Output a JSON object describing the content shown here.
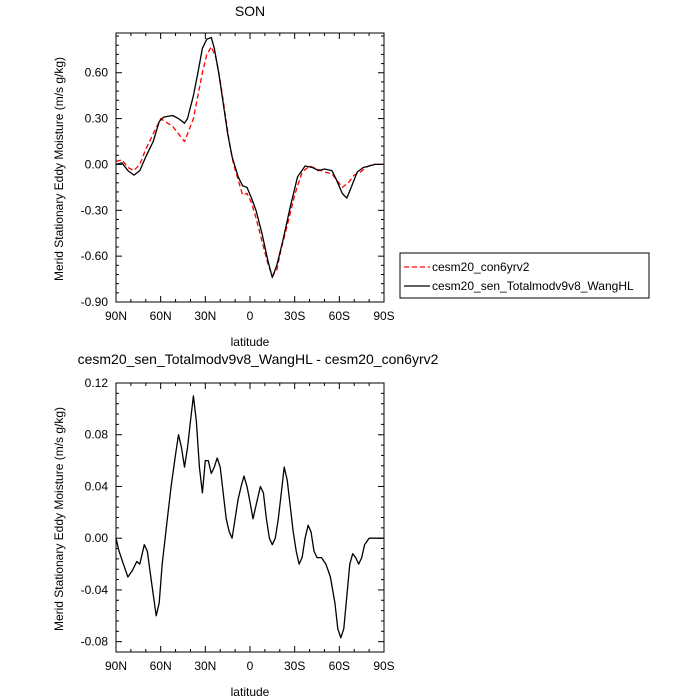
{
  "chart_data": [
    {
      "type": "line",
      "title": "SON",
      "xlabel": "latitude",
      "ylabel": "Merid Stationary Eddy Moisture (m/s g/kg)",
      "xlim": [
        90,
        -90
      ],
      "ylim": [
        -0.9,
        0.86
      ],
      "x_tick_values": [
        90,
        60,
        30,
        0,
        -30,
        -60,
        -90
      ],
      "x_tick_labels": [
        "90N",
        "60N",
        "30N",
        "0",
        "30S",
        "60S",
        "90S"
      ],
      "y_tick_values": [
        -0.9,
        -0.6,
        -0.3,
        0.0,
        0.3,
        0.6
      ],
      "y_tick_labels": [
        "-0.90",
        "-0.60",
        "-0.30",
        "0.00",
        "0.30",
        "0.60"
      ],
      "legend_position": "right",
      "series": [
        {
          "name": "cesm20_con6yrv2",
          "color": "#ff0000",
          "dash": "dashed",
          "points": [
            [
              90,
              0.02
            ],
            [
              86,
              0.03
            ],
            [
              82,
              -0.02
            ],
            [
              78,
              -0.04
            ],
            [
              74,
              0.0
            ],
            [
              70,
              0.1
            ],
            [
              65,
              0.2
            ],
            [
              60,
              0.3
            ],
            [
              57,
              0.28
            ],
            [
              52,
              0.25
            ],
            [
              48,
              0.2
            ],
            [
              44,
              0.15
            ],
            [
              42,
              0.2
            ],
            [
              38,
              0.3
            ],
            [
              35,
              0.45
            ],
            [
              32,
              0.6
            ],
            [
              29,
              0.72
            ],
            [
              26,
              0.77
            ],
            [
              23,
              0.7
            ],
            [
              20,
              0.55
            ],
            [
              17,
              0.35
            ],
            [
              14,
              0.15
            ],
            [
              11,
              0.0
            ],
            [
              8,
              -0.1
            ],
            [
              5,
              -0.2
            ],
            [
              2,
              -0.19
            ],
            [
              -1,
              -0.25
            ],
            [
              -4,
              -0.35
            ],
            [
              -8,
              -0.5
            ],
            [
              -12,
              -0.65
            ],
            [
              -15,
              -0.73
            ],
            [
              -18,
              -0.69
            ],
            [
              -21,
              -0.55
            ],
            [
              -25,
              -0.4
            ],
            [
              -30,
              -0.2
            ],
            [
              -35,
              -0.05
            ],
            [
              -40,
              -0.01
            ],
            [
              -45,
              -0.03
            ],
            [
              -50,
              -0.05
            ],
            [
              -55,
              -0.06
            ],
            [
              -58,
              -0.1
            ],
            [
              -62,
              -0.15
            ],
            [
              -66,
              -0.12
            ],
            [
              -70,
              -0.07
            ],
            [
              -74,
              -0.05
            ],
            [
              -78,
              -0.02
            ],
            [
              -82,
              0.0
            ],
            [
              -85,
              0.0
            ],
            [
              -90,
              0.0
            ]
          ]
        },
        {
          "name": "cesm20_sen_Totalmodv9v8_WangHL",
          "color": "#000000",
          "dash": "solid",
          "points": [
            [
              90,
              0.0
            ],
            [
              86,
              0.01
            ],
            [
              82,
              -0.04
            ],
            [
              78,
              -0.07
            ],
            [
              74,
              -0.04
            ],
            [
              70,
              0.05
            ],
            [
              65,
              0.15
            ],
            [
              61,
              0.28
            ],
            [
              58,
              0.31
            ],
            [
              52,
              0.32
            ],
            [
              48,
              0.3
            ],
            [
              44,
              0.27
            ],
            [
              42,
              0.3
            ],
            [
              38,
              0.45
            ],
            [
              35,
              0.6
            ],
            [
              32,
              0.76
            ],
            [
              29,
              0.82
            ],
            [
              26,
              0.83
            ],
            [
              24,
              0.76
            ],
            [
              21,
              0.6
            ],
            [
              18,
              0.4
            ],
            [
              15,
              0.2
            ],
            [
              12,
              0.05
            ],
            [
              8,
              -0.08
            ],
            [
              5,
              -0.14
            ],
            [
              2,
              -0.15
            ],
            [
              -1,
              -0.22
            ],
            [
              -4,
              -0.3
            ],
            [
              -8,
              -0.45
            ],
            [
              -12,
              -0.63
            ],
            [
              -15,
              -0.74
            ],
            [
              -18,
              -0.66
            ],
            [
              -22,
              -0.5
            ],
            [
              -27,
              -0.28
            ],
            [
              -32,
              -0.08
            ],
            [
              -37,
              -0.01
            ],
            [
              -42,
              -0.02
            ],
            [
              -46,
              -0.04
            ],
            [
              -50,
              -0.03
            ],
            [
              -55,
              -0.04
            ],
            [
              -58,
              -0.1
            ],
            [
              -62,
              -0.19
            ],
            [
              -65,
              -0.22
            ],
            [
              -68,
              -0.15
            ],
            [
              -72,
              -0.05
            ],
            [
              -76,
              -0.02
            ],
            [
              -80,
              -0.01
            ],
            [
              -84,
              0.0
            ],
            [
              -90,
              0.0
            ]
          ]
        }
      ]
    },
    {
      "type": "line",
      "title": "cesm20_sen_Totalmodv9v8_WangHL - cesm20_con6yrv2",
      "xlabel": "latitude",
      "ylabel": "Merid Stationary Eddy Moisture (m/s g/kg)",
      "xlim": [
        90,
        -90
      ],
      "ylim": [
        -0.088,
        0.12
      ],
      "x_tick_values": [
        90,
        60,
        30,
        0,
        -30,
        -60,
        -90
      ],
      "x_tick_labels": [
        "90N",
        "60N",
        "30N",
        "0",
        "30S",
        "60S",
        "90S"
      ],
      "y_tick_values": [
        -0.08,
        -0.04,
        0.0,
        0.04,
        0.08,
        0.12
      ],
      "y_tick_labels": [
        "-0.08",
        "-0.04",
        "0.00",
        "0.04",
        "0.08",
        "0.12"
      ],
      "series": [
        {
          "color": "#000000",
          "dash": "solid",
          "points": [
            [
              90,
              0.0
            ],
            [
              88,
              -0.01
            ],
            [
              85,
              -0.02
            ],
            [
              82,
              -0.03
            ],
            [
              79,
              -0.025
            ],
            [
              76,
              -0.018
            ],
            [
              74,
              -0.02
            ],
            [
              71,
              -0.005
            ],
            [
              69,
              -0.01
            ],
            [
              66,
              -0.035
            ],
            [
              63,
              -0.06
            ],
            [
              61,
              -0.05
            ],
            [
              59,
              -0.02
            ],
            [
              56,
              0.01
            ],
            [
              53,
              0.04
            ],
            [
              50,
              0.065
            ],
            [
              48,
              0.08
            ],
            [
              46,
              0.07
            ],
            [
              44,
              0.055
            ],
            [
              42,
              0.07
            ],
            [
              40,
              0.09
            ],
            [
              38,
              0.11
            ],
            [
              36,
              0.09
            ],
            [
              34,
              0.055
            ],
            [
              32,
              0.035
            ],
            [
              30,
              0.06
            ],
            [
              28,
              0.06
            ],
            [
              26,
              0.05
            ],
            [
              24,
              0.055
            ],
            [
              22,
              0.062
            ],
            [
              20,
              0.055
            ],
            [
              18,
              0.035
            ],
            [
              16,
              0.015
            ],
            [
              14,
              0.005
            ],
            [
              12,
              0.0
            ],
            [
              10,
              0.015
            ],
            [
              8,
              0.03
            ],
            [
              6,
              0.04
            ],
            [
              4,
              0.048
            ],
            [
              2,
              0.04
            ],
            [
              0,
              0.028
            ],
            [
              -2,
              0.015
            ],
            [
              -5,
              0.03
            ],
            [
              -7,
              0.04
            ],
            [
              -9,
              0.035
            ],
            [
              -11,
              0.015
            ],
            [
              -13,
              0.0
            ],
            [
              -15,
              -0.005
            ],
            [
              -17,
              0.0
            ],
            [
              -19,
              0.015
            ],
            [
              -21,
              0.035
            ],
            [
              -23,
              0.055
            ],
            [
              -25,
              0.045
            ],
            [
              -27,
              0.025
            ],
            [
              -29,
              0.005
            ],
            [
              -31,
              -0.01
            ],
            [
              -33,
              -0.02
            ],
            [
              -35,
              -0.015
            ],
            [
              -37,
              0.0
            ],
            [
              -39,
              0.01
            ],
            [
              -41,
              0.005
            ],
            [
              -43,
              -0.01
            ],
            [
              -45,
              -0.015
            ],
            [
              -48,
              -0.015
            ],
            [
              -51,
              -0.02
            ],
            [
              -54,
              -0.03
            ],
            [
              -57,
              -0.05
            ],
            [
              -59,
              -0.07
            ],
            [
              -61,
              -0.077
            ],
            [
              -63,
              -0.07
            ],
            [
              -65,
              -0.045
            ],
            [
              -67,
              -0.02
            ],
            [
              -69,
              -0.012
            ],
            [
              -71,
              -0.015
            ],
            [
              -73,
              -0.02
            ],
            [
              -75,
              -0.015
            ],
            [
              -77,
              -0.005
            ],
            [
              -80,
              0.0
            ],
            [
              -85,
              0.0
            ],
            [
              -90,
              0.0
            ]
          ]
        }
      ]
    }
  ]
}
